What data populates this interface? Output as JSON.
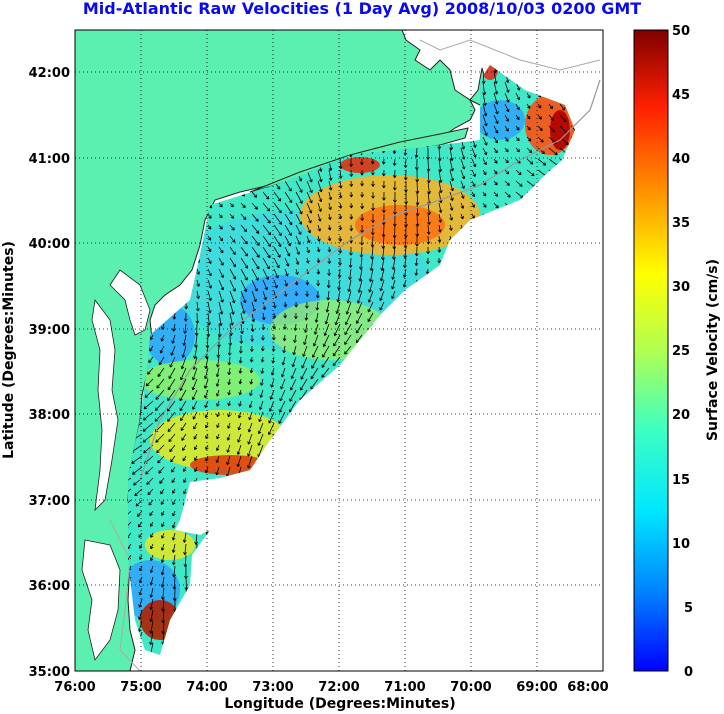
{
  "title": "Mid-Atlantic Raw Velocities (1 Day Avg) 2008/10/03 0200 GMT",
  "axes": {
    "x_label": "Longitude (Degrees:Minutes)",
    "y_label": "Latitude (Degrees:Minutes)",
    "x_ticks": [
      "76:00",
      "75:00",
      "74:00",
      "73:00",
      "72:00",
      "71:00",
      "70:00",
      "69:00",
      "68:00"
    ],
    "y_ticks": [
      "42:00",
      "41:00",
      "40:00",
      "39:00",
      "38:00",
      "37:00",
      "36:00",
      "35:00"
    ],
    "x_range_deg_west": [
      76,
      68
    ],
    "y_range_deg_north": [
      35,
      42.5
    ],
    "grid": "dotted"
  },
  "colorbar": {
    "label": "Surface Velocity (cm/s)",
    "ticks": [
      "50",
      "45",
      "40",
      "35",
      "30",
      "25",
      "20",
      "15",
      "10",
      "5",
      "0"
    ],
    "range": [
      0,
      50
    ],
    "colormap": "jet"
  },
  "colors": {
    "land": "#5cf0b0",
    "coast_line": "#222222",
    "bathymetry": "#999999",
    "arrows": "#000000",
    "title": "#0a0af0"
  }
}
